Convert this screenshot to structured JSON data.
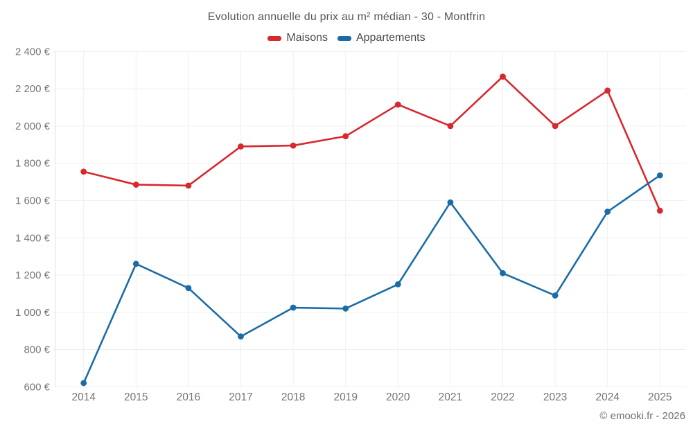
{
  "title": "Evolution annuelle du prix au m² médian - 30 - Montfrin",
  "legend": {
    "items": [
      {
        "label": "Maisons",
        "color": "#d7282e"
      },
      {
        "label": "Appartements",
        "color": "#1b6ca6"
      }
    ]
  },
  "footer": {
    "copyright": "© emooki.fr - 2026"
  },
  "colors": {
    "grid": "#efefef",
    "axis": "#e3e3e3",
    "tick_text": "#747474",
    "title_text": "#565656",
    "legend_text": "#4a4a4a",
    "footer_text": "#6e6e6e",
    "maisons": "#d7282e",
    "appartements": "#1b6ca6"
  },
  "chart_data": {
    "type": "line",
    "title": "Evolution annuelle du prix au m² médian - 30 - Montfrin",
    "categories": [
      "2014",
      "2015",
      "2016",
      "2017",
      "2018",
      "2019",
      "2020",
      "2021",
      "2022",
      "2023",
      "2024",
      "2025"
    ],
    "series": [
      {
        "name": "Maisons",
        "color": "#d7282e",
        "values": [
          1755,
          1685,
          1680,
          1890,
          1895,
          1945,
          2115,
          2000,
          2265,
          2000,
          2190,
          1545
        ]
      },
      {
        "name": "Appartements",
        "color": "#1b6ca6",
        "values": [
          620,
          1260,
          1130,
          870,
          1025,
          1020,
          1150,
          1590,
          1210,
          1090,
          1540,
          1735
        ]
      }
    ],
    "ylim": [
      600,
      2400
    ],
    "ytick_step": 200,
    "ytick_labels": [
      "600 €",
      "800 €",
      "1 000 €",
      "1 200 €",
      "1 400 €",
      "1 600 €",
      "1 800 €",
      "2 000 €",
      "2 200 €",
      "2 400 €"
    ],
    "unit": "€",
    "grid": true,
    "legend_position": "top",
    "marker": "circle"
  }
}
